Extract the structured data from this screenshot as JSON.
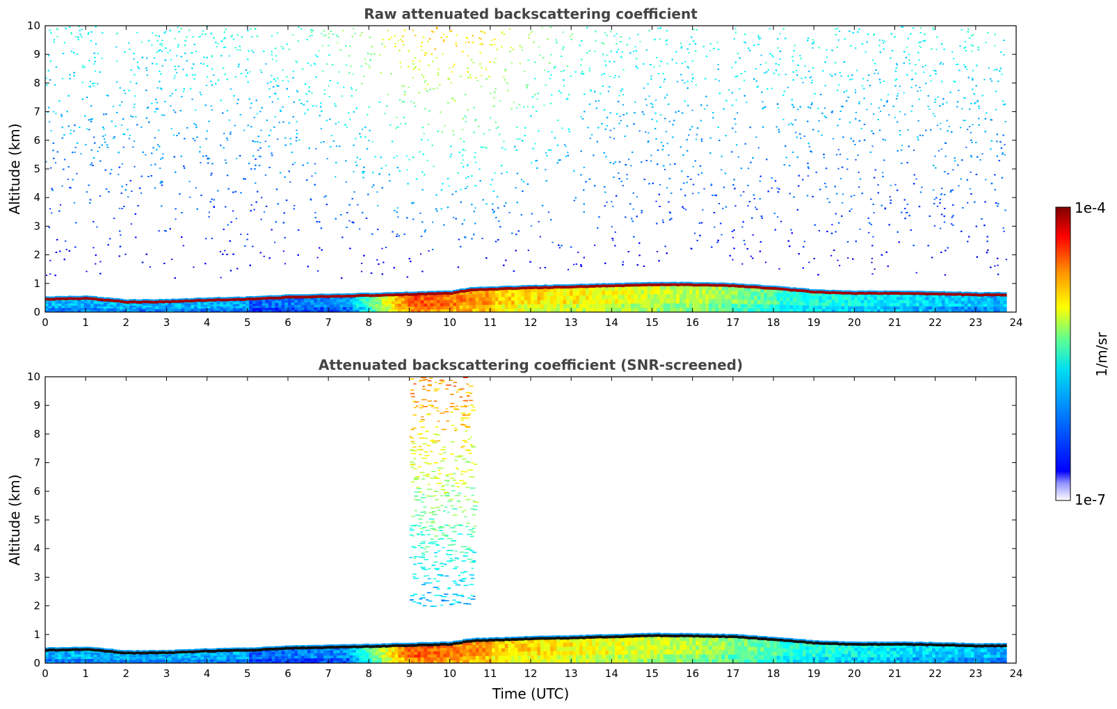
{
  "chart_data": [
    {
      "type": "heatmap",
      "title": "Raw attenuated backscattering coefficient",
      "xlabel": "",
      "ylabel": "Altitude (km)",
      "xlim": [
        0,
        24
      ],
      "ylim": [
        0,
        10
      ],
      "xticks": [
        "0",
        "1",
        "2",
        "3",
        "4",
        "5",
        "6",
        "7",
        "8",
        "9",
        "10",
        "11",
        "12",
        "13",
        "14",
        "15",
        "16",
        "17",
        "18",
        "19",
        "20",
        "21",
        "22",
        "23",
        "24"
      ],
      "yticks": [
        "0",
        "1",
        "2",
        "3",
        "4",
        "5",
        "6",
        "7",
        "8",
        "9",
        "10"
      ],
      "boundary_layer_top_km": [
        {
          "t": 0,
          "h": 0.45
        },
        {
          "t": 1,
          "h": 0.48
        },
        {
          "t": 2,
          "h": 0.35
        },
        {
          "t": 3,
          "h": 0.36
        },
        {
          "t": 4,
          "h": 0.42
        },
        {
          "t": 5,
          "h": 0.45
        },
        {
          "t": 6,
          "h": 0.52
        },
        {
          "t": 7,
          "h": 0.55
        },
        {
          "t": 8,
          "h": 0.58
        },
        {
          "t": 9,
          "h": 0.62
        },
        {
          "t": 10,
          "h": 0.66
        },
        {
          "t": 10.5,
          "h": 0.78
        },
        {
          "t": 11,
          "h": 0.8
        },
        {
          "t": 12,
          "h": 0.85
        },
        {
          "t": 13,
          "h": 0.88
        },
        {
          "t": 14,
          "h": 0.92
        },
        {
          "t": 15,
          "h": 0.96
        },
        {
          "t": 16,
          "h": 0.95
        },
        {
          "t": 17,
          "h": 0.92
        },
        {
          "t": 18,
          "h": 0.82
        },
        {
          "t": 19,
          "h": 0.7
        },
        {
          "t": 20,
          "h": 0.65
        },
        {
          "t": 21,
          "h": 0.66
        },
        {
          "t": 22,
          "h": 0.64
        },
        {
          "t": 23,
          "h": 0.6
        },
        {
          "t": 23.75,
          "h": 0.6
        }
      ],
      "data_end_hour": 23.75,
      "noise_region_km": [
        1.2,
        10
      ]
    },
    {
      "type": "heatmap",
      "title": "Attenuated backscattering coefficient (SNR-screened)",
      "xlabel": "Time (UTC)",
      "ylabel": "Altitude (km)",
      "xlim": [
        0,
        24
      ],
      "ylim": [
        0,
        10
      ],
      "xticks": [
        "0",
        "1",
        "2",
        "3",
        "4",
        "5",
        "6",
        "7",
        "8",
        "9",
        "10",
        "11",
        "12",
        "13",
        "14",
        "15",
        "16",
        "17",
        "18",
        "19",
        "20",
        "21",
        "22",
        "23",
        "24"
      ],
      "yticks": [
        "0",
        "1",
        "2",
        "3",
        "4",
        "5",
        "6",
        "7",
        "8",
        "9",
        "10"
      ],
      "retained_signal_hours": [
        9,
        10.6
      ],
      "retained_signal_km": [
        2,
        10
      ]
    }
  ],
  "colorbar": {
    "label": "1/m/sr",
    "max_label": "1e-4",
    "min_label": "1e-7",
    "scale": "log",
    "colormap": "jet",
    "colors": [
      "#ffffff",
      "#0000ff",
      "#00a0ff",
      "#00e5e5",
      "#80ff80",
      "#ffff00",
      "#ff8000",
      "#ff0000",
      "#800000"
    ]
  }
}
